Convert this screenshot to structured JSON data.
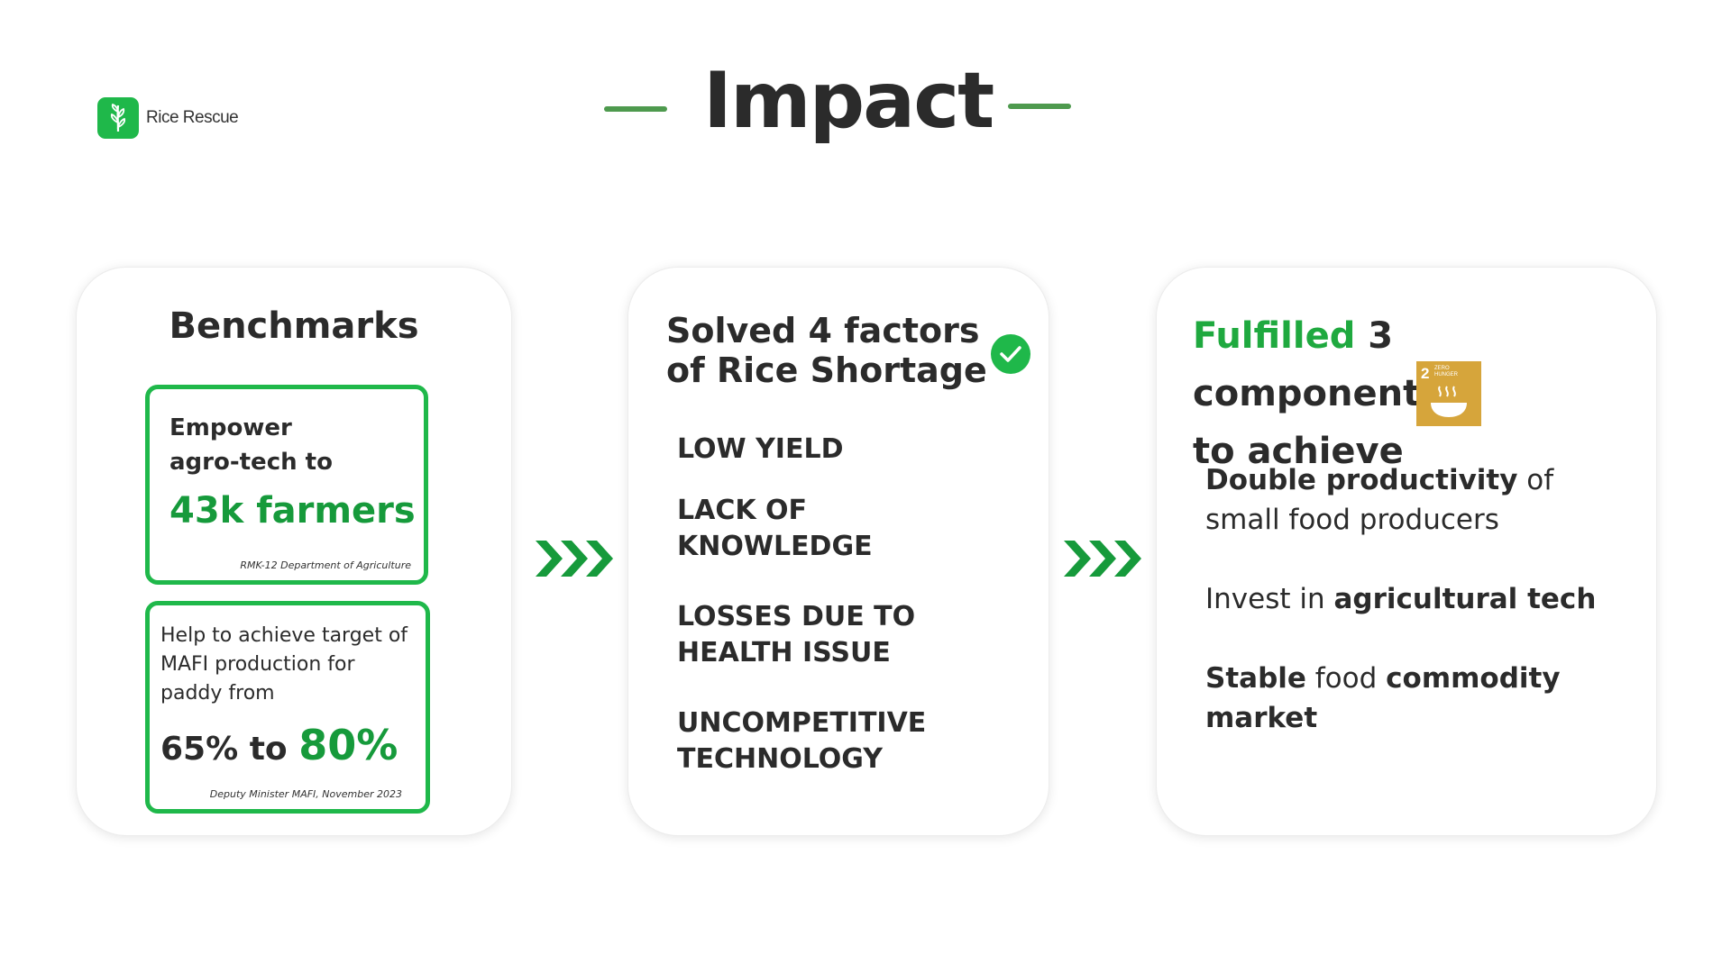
{
  "logo": {
    "text": "Rice Rescue"
  },
  "slide": {
    "title": "Impact"
  },
  "benchmarks": {
    "heading": "Benchmarks",
    "box1": {
      "line1": "Empower",
      "line2": "agro-tech to",
      "highlight": "43k farmers",
      "source": "RMK-12 Department of Agriculture"
    },
    "box2": {
      "line1": "Help to achieve target of",
      "line2": "MAFI production for",
      "line3": "paddy from",
      "from": "65% to",
      "to": "80%",
      "source": "Deputy Minister MAFI, November 2023"
    }
  },
  "factors": {
    "heading_line1": "Solved 4 factors",
    "heading_line2": "of Rice Shortage",
    "items": [
      {
        "line1": "LOW YIELD",
        "line2": ""
      },
      {
        "line1": "LACK OF",
        "line2": "KNOWLEDGE"
      },
      {
        "line1": "LOSSES DUE TO",
        "line2": "HEALTH ISSUE"
      },
      {
        "line1": "UNCOMPETITIVE",
        "line2": "TECHNOLOGY"
      }
    ]
  },
  "components": {
    "heading_green": "Fulfilled",
    "heading_rest": " 3 components",
    "heading_line2": "to achieve",
    "sdg": {
      "number": "2",
      "label_line1": "ZERO",
      "label_line2": "HUNGER",
      "color": "#d6a53b"
    },
    "item1": {
      "bold": "Double productivity",
      "rest": " of small food producers"
    },
    "item2": {
      "plain": "Invest in ",
      "bold": "agricultural tech"
    },
    "item3": {
      "bold1": "Stable",
      "plain": " food ",
      "bold2": "commodity market"
    }
  },
  "colors": {
    "accent": "#1fb84a",
    "accent_dark": "#169a3b",
    "title_line": "#4e9a4e",
    "text": "#2b2b2b"
  }
}
